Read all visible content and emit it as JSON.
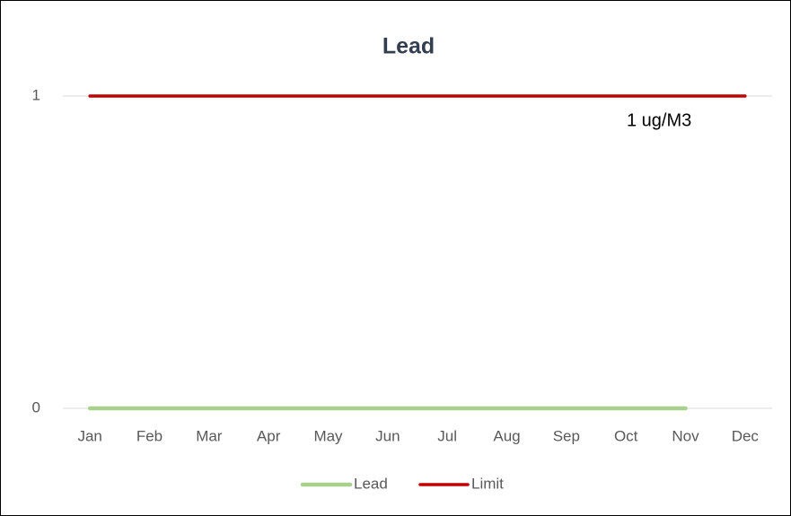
{
  "chart_data": {
    "type": "line",
    "title": "Lead",
    "categories": [
      "Jan",
      "Feb",
      "Mar",
      "Apr",
      "May",
      "Jun",
      "Jul",
      "Aug",
      "Sep",
      "Oct",
      "Nov",
      "Dec"
    ],
    "series": [
      {
        "name": "Lead",
        "color": "#a9d18e",
        "values": [
          0,
          0,
          0,
          0,
          0,
          0,
          0,
          0,
          0,
          0,
          0,
          null
        ]
      },
      {
        "name": "Limit",
        "color": "#c00000",
        "values": [
          1,
          1,
          1,
          1,
          1,
          1,
          1,
          1,
          1,
          1,
          1,
          1
        ]
      }
    ],
    "annotation": "1 ug/M3",
    "ylim": [
      0,
      1
    ],
    "yticks": [
      0,
      1
    ],
    "grid": true,
    "legend": "bottom"
  }
}
